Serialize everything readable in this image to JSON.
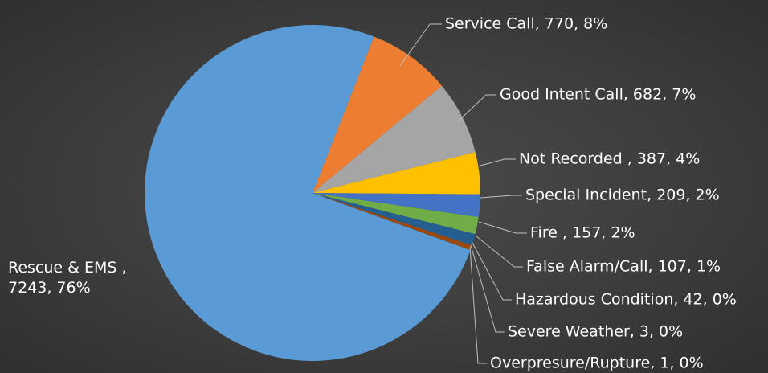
{
  "chart_data": {
    "type": "pie",
    "title": "",
    "slices": [
      {
        "label": "Rescue & EMS ,",
        "value": 7243,
        "pct": "76%",
        "color": "#5b9bd5"
      },
      {
        "label": "Service Call",
        "value": 770,
        "pct": "8%",
        "color": "#ed7d31"
      },
      {
        "label": "Good Intent Call",
        "value": 682,
        "pct": "7%",
        "color": "#a5a5a5"
      },
      {
        "label": "Not Recorded ",
        "value": 387,
        "pct": "4%",
        "color": "#ffc000"
      },
      {
        "label": "Special Incident",
        "value": 209,
        "pct": "2%",
        "color": "#4472c4"
      },
      {
        "label": "Fire ",
        "value": 157,
        "pct": "2%",
        "color": "#70ad47"
      },
      {
        "label": "False Alarm/Call",
        "value": 107,
        "pct": "1%",
        "color": "#255e91"
      },
      {
        "label": "Hazardous Condition",
        "value": 42,
        "pct": "0%",
        "color": "#9e480e"
      },
      {
        "label": "Severe Weather",
        "value": 3,
        "pct": "0%",
        "color": "#636363"
      },
      {
        "label": "Overpresure/Rupture",
        "value": 1,
        "pct": "0%",
        "color": "#997300"
      }
    ],
    "labels": {
      "rescue_line1": "Rescue & EMS ,",
      "rescue_line2": "7243, 76%",
      "service": "Service Call, 770, 8%",
      "good_intent": "Good Intent Call, 682, 7%",
      "not_recorded": "Not Recorded , 387, 4%",
      "special": "Special Incident, 209, 2%",
      "fire": "Fire , 157, 2%",
      "false_alarm": "False Alarm/Call, 107, 1%",
      "hazardous": "Hazardous Condition, 42, 0%",
      "severe": "Severe Weather, 3, 0%",
      "overpressure": "Overpresure/Rupture, 1, 0%"
    },
    "legend": "none"
  }
}
